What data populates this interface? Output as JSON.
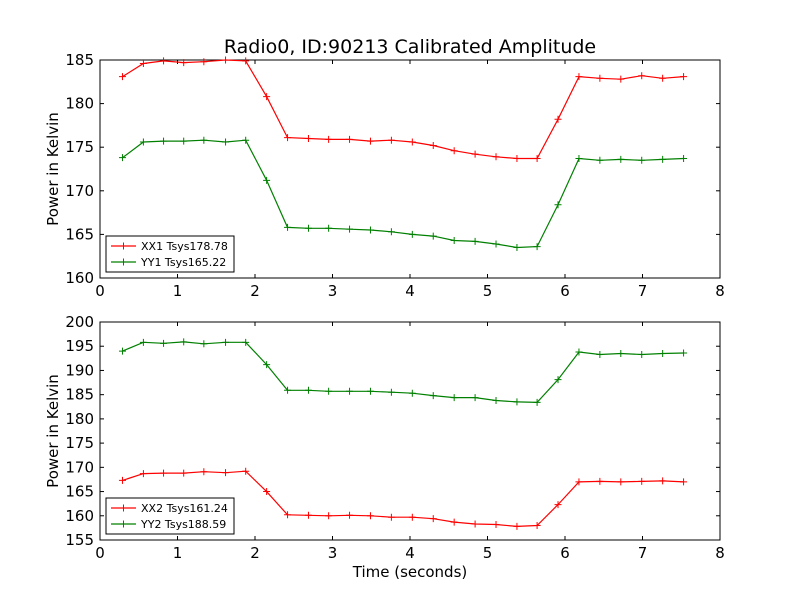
{
  "figure_title": "Radio0, ID:90213 Calibrated Amplitude",
  "colors": {
    "XX": "#ff0000",
    "YY": "#008000"
  },
  "chart_data": [
    {
      "type": "line",
      "title": "Radio0, ID:90213 Calibrated Amplitude",
      "xlabel": "",
      "ylabel": "Power in Kelvin",
      "xlim": [
        0,
        8
      ],
      "ylim": [
        160,
        185
      ],
      "xticks": [
        0,
        1,
        2,
        3,
        4,
        5,
        6,
        7,
        8
      ],
      "yticks": [
        160,
        165,
        170,
        175,
        180,
        185
      ],
      "grid": false,
      "legend_position": "lower-left",
      "x": [
        0.29,
        0.56,
        0.82,
        1.08,
        1.34,
        1.62,
        1.88,
        2.15,
        2.42,
        2.69,
        2.95,
        3.22,
        3.49,
        3.76,
        4.03,
        4.3,
        4.57,
        4.84,
        5.11,
        5.38,
        5.64,
        5.91,
        6.18,
        6.45,
        6.72,
        6.99,
        7.26,
        7.53
      ],
      "series": [
        {
          "name": "XX1 Tsys178.78",
          "color": "#ff0000",
          "values": [
            183.1,
            184.6,
            184.9,
            184.7,
            184.8,
            185.0,
            184.9,
            180.8,
            176.1,
            176.0,
            175.9,
            175.9,
            175.7,
            175.8,
            175.6,
            175.2,
            174.6,
            174.2,
            173.9,
            173.7,
            173.7,
            178.2,
            183.1,
            182.9,
            182.8,
            183.2,
            182.9,
            183.1
          ]
        },
        {
          "name": "YY1 Tsys165.22",
          "color": "#008000",
          "values": [
            173.8,
            175.6,
            175.7,
            175.7,
            175.8,
            175.6,
            175.8,
            171.2,
            165.8,
            165.7,
            165.7,
            165.6,
            165.5,
            165.3,
            165.0,
            164.8,
            164.3,
            164.2,
            163.9,
            163.5,
            163.6,
            168.4,
            173.7,
            173.5,
            173.6,
            173.5,
            173.6,
            173.7
          ]
        }
      ]
    },
    {
      "type": "line",
      "title": "",
      "xlabel": "Time (seconds)",
      "ylabel": "Power in Kelvin",
      "xlim": [
        0,
        8
      ],
      "ylim": [
        155,
        200
      ],
      "xticks": [
        0,
        1,
        2,
        3,
        4,
        5,
        6,
        7,
        8
      ],
      "yticks": [
        155,
        160,
        165,
        170,
        175,
        180,
        185,
        190,
        195,
        200
      ],
      "grid": false,
      "legend_position": "lower-left",
      "x": [
        0.29,
        0.56,
        0.82,
        1.08,
        1.34,
        1.62,
        1.88,
        2.15,
        2.42,
        2.69,
        2.95,
        3.22,
        3.49,
        3.76,
        4.03,
        4.3,
        4.57,
        4.84,
        5.11,
        5.38,
        5.64,
        5.91,
        6.18,
        6.45,
        6.72,
        6.99,
        7.26,
        7.53
      ],
      "series": [
        {
          "name": "XX2 Tsys161.24",
          "color": "#ff0000",
          "values": [
            167.3,
            168.7,
            168.8,
            168.8,
            169.1,
            168.9,
            169.2,
            165.0,
            160.2,
            160.1,
            160.0,
            160.1,
            160.0,
            159.7,
            159.7,
            159.4,
            158.7,
            158.3,
            158.2,
            157.8,
            158.0,
            162.3,
            167.0,
            167.1,
            167.0,
            167.1,
            167.2,
            167.0
          ]
        },
        {
          "name": "YY2 Tsys188.59",
          "color": "#008000",
          "values": [
            194.0,
            195.8,
            195.6,
            195.9,
            195.5,
            195.8,
            195.8,
            191.2,
            185.9,
            185.9,
            185.7,
            185.7,
            185.7,
            185.5,
            185.3,
            184.8,
            184.4,
            184.4,
            183.8,
            183.5,
            183.4,
            188.1,
            193.8,
            193.3,
            193.5,
            193.3,
            193.5,
            193.6
          ]
        }
      ]
    }
  ]
}
